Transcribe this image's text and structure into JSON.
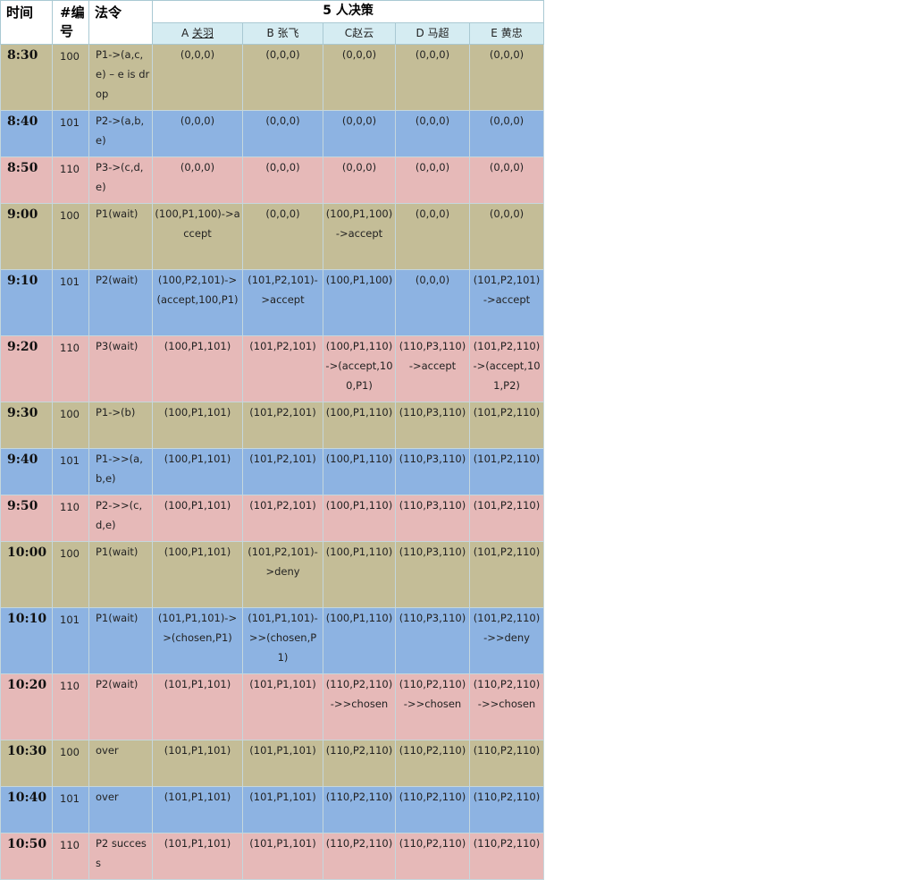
{
  "headers": {
    "time": "时间",
    "id_line1": "#编",
    "id_line2": "号",
    "law": "法令",
    "group": "5 人决策",
    "people": [
      {
        "letter": "A",
        "name": "关羽"
      },
      {
        "letter": "B",
        "name": "张飞"
      },
      {
        "letter": "C",
        "name": "赵云"
      },
      {
        "letter": "D",
        "name": "马超"
      },
      {
        "letter": "E",
        "name": "黄忠"
      }
    ]
  },
  "row_colors": {
    "olive": "#c4bd97",
    "blue": "#8db3e2",
    "pink": "#e6b9b8",
    "header": "#d5ecf2"
  },
  "rows": [
    {
      "time": "8:30",
      "id": "100",
      "law": "P1->(a,c,e) – e is drop",
      "a": "(0,0,0)",
      "b": "(0,0,0)",
      "c": "(0,0,0)",
      "d": "(0,0,0)",
      "e": "(0,0,0)",
      "color": "olive"
    },
    {
      "time": "8:40",
      "id": "101",
      "law": "P2->(a,b,e)",
      "a": "(0,0,0)",
      "b": "(0,0,0)",
      "c": "(0,0,0)",
      "d": "(0,0,0)",
      "e": "(0,0,0)",
      "color": "blue"
    },
    {
      "time": "8:50",
      "id": "110",
      "law": "P3->(c,d,e)",
      "a": "(0,0,0)",
      "b": "(0,0,0)",
      "c": "(0,0,0)",
      "d": "(0,0,0)",
      "e": "(0,0,0)",
      "color": "pink"
    },
    {
      "time": "9:00",
      "id": "100",
      "law": "P1(wait)",
      "a": "(100,P1,100)->accept",
      "b": "(0,0,0)",
      "c": "(100,P1,100)->accept",
      "d": "(0,0,0)",
      "e": "(0,0,0)",
      "color": "olive"
    },
    {
      "time": "9:10",
      "id": "101",
      "law": "P2(wait)",
      "a": "(100,P2,101)->(accept,100,P1)",
      "b": "(101,P2,101)->accept",
      "c": "(100,P1,100)",
      "d": "(0,0,0)",
      "e": "(101,P2,101)->accept",
      "color": "blue"
    },
    {
      "time": "9:20",
      "id": "110",
      "law": "P3(wait)",
      "a": "(100,P1,101)",
      "b": "(101,P2,101)",
      "c": "(100,P1,110)->(accept,100,P1)",
      "d": "(110,P3,110)->accept",
      "e": "(101,P2,110)->(accept,101,P2)",
      "color": "pink"
    },
    {
      "time": "9:30",
      "id": "100",
      "law": "P1->(b)",
      "a": "(100,P1,101)",
      "b": "(101,P2,101)",
      "c": "(100,P1,110)",
      "d": "(110,P3,110)",
      "e": "(101,P2,110)",
      "color": "olive"
    },
    {
      "time": "9:40",
      "id": "101",
      "law": "P1->>(a,b,e)",
      "a": "(100,P1,101)",
      "b": "(101,P2,101)",
      "c": "(100,P1,110)",
      "d": "(110,P3,110)",
      "e": "(101,P2,110)",
      "color": "blue"
    },
    {
      "time": "9:50",
      "id": "110",
      "law": "P2->>(c,d,e)",
      "a": "(100,P1,101)",
      "b": "(101,P2,101)",
      "c": "(100,P1,110)",
      "d": "(110,P3,110)",
      "e": "(101,P2,110)",
      "color": "pink"
    },
    {
      "time": "10:00",
      "id": "100",
      "law": "P1(wait)",
      "a": "(100,P1,101)",
      "b": "(101,P2,101)->deny",
      "c": "(100,P1,110)",
      "d": "(110,P3,110)",
      "e": "(101,P2,110)",
      "color": "olive"
    },
    {
      "time": "10:10",
      "id": "101",
      "law": "P1(wait)",
      "a": "(101,P1,101)->>(chosen,P1)",
      "b": "(101,P1,101)->>(chosen,P1)",
      "c": "(100,P1,110)",
      "d": "(110,P3,110)",
      "e": "(101,P2,110)->>deny",
      "color": "blue"
    },
    {
      "time": "10:20",
      "id": "110",
      "law": "P2(wait)",
      "a": "(101,P1,101)",
      "b": "(101,P1,101)",
      "c": "(110,P2,110)->>chosen",
      "d": "(110,P2,110)->>chosen",
      "e": "(110,P2,110)->>chosen",
      "color": "pink"
    },
    {
      "time": "10:30",
      "id": "100",
      "law": "over",
      "a": "(101,P1,101)",
      "b": "(101,P1,101)",
      "c": "(110,P2,110)",
      "d": "(110,P2,110)",
      "e": "(110,P2,110)",
      "color": "olive"
    },
    {
      "time": "10:40",
      "id": "101",
      "law": "over",
      "a": "(101,P1,101)",
      "b": "(101,P1,101)",
      "c": "(110,P2,110)",
      "d": "(110,P2,110)",
      "e": "(110,P2,110)",
      "color": "blue"
    },
    {
      "time": "10:50",
      "id": "110",
      "law": "P2 success",
      "a": "(101,P1,101)",
      "b": "(101,P1,101)",
      "c": "(110,P2,110)",
      "d": "(110,P2,110)",
      "e": "(110,P2,110)",
      "color": "pink"
    }
  ]
}
